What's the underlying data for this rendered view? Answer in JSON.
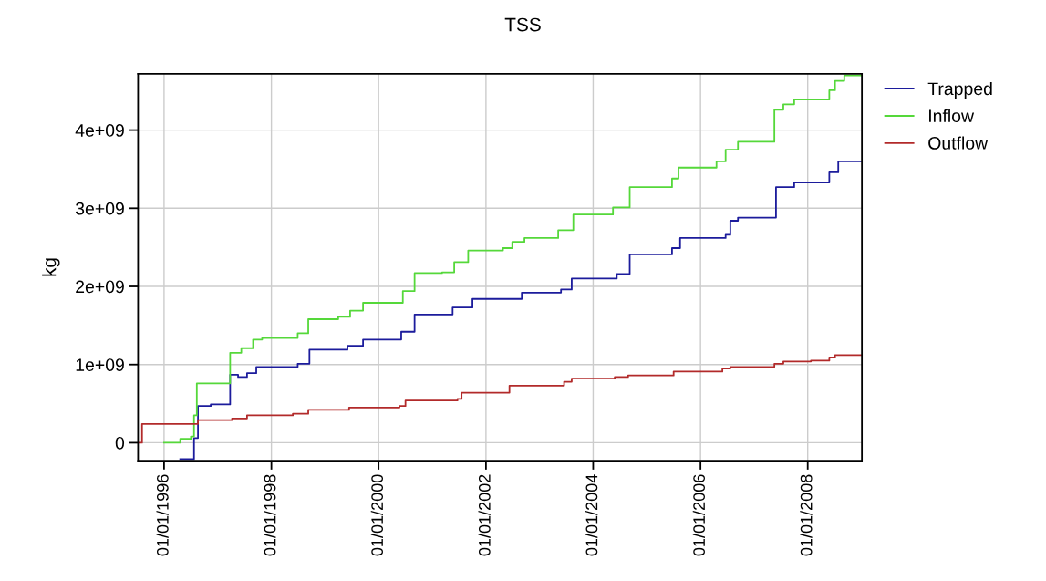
{
  "chart_data": {
    "type": "step",
    "title": "TSS",
    "ylabel": "kg",
    "xlim": [
      "1995-07-08",
      "2009-01-04"
    ],
    "ylim": [
      -230000000,
      4720000000
    ],
    "xticks": [
      {
        "value": "1996-01-01",
        "label": "01/01/1996"
      },
      {
        "value": "1998-01-01",
        "label": "01/01/1998"
      },
      {
        "value": "2000-01-01",
        "label": "01/01/2000"
      },
      {
        "value": "2002-01-01",
        "label": "01/01/2002"
      },
      {
        "value": "2004-01-01",
        "label": "01/01/2004"
      },
      {
        "value": "2006-01-01",
        "label": "01/01/2006"
      },
      {
        "value": "2008-01-01",
        "label": "01/01/2008"
      }
    ],
    "yticks": [
      {
        "value": 0,
        "label": "0"
      },
      {
        "value": 1000000000,
        "label": "1e+09"
      },
      {
        "value": 2000000000,
        "label": "2e+09"
      },
      {
        "value": 3000000000,
        "label": "3e+09"
      },
      {
        "value": 4000000000,
        "label": "4e+09"
      }
    ],
    "grid": true,
    "legend": "top right",
    "series": [
      {
        "name": "Trapped",
        "color": "#1c1c9c",
        "x": [
          "1996-04-20",
          "1996-07-23",
          "1996-08-19",
          "1996-11-14",
          "1997-03-26",
          "1997-05-19",
          "1997-07-19",
          "1997-09-20",
          "1998-06-29",
          "1998-09-17",
          "1999-06-03",
          "1999-09-17",
          "2000-06-03",
          "2000-09-02",
          "2001-05-19",
          "2001-10-01",
          "2002-09-02",
          "2003-05-27",
          "2003-08-08",
          "2004-06-10",
          "2004-09-06",
          "2005-06-21",
          "2005-08-15",
          "2006-06-21",
          "2006-07-23",
          "2006-09-13",
          "2007-05-30",
          "2007-10-01",
          "2008-05-27",
          "2008-07-27",
          "2009-01-04"
        ],
        "values": [
          -210000000,
          60000000,
          470000000,
          490000000,
          870000000,
          840000000,
          890000000,
          970000000,
          1010000000,
          1190000000,
          1240000000,
          1320000000,
          1420000000,
          1640000000,
          1730000000,
          1840000000,
          1920000000,
          1960000000,
          2100000000,
          2160000000,
          2410000000,
          2490000000,
          2620000000,
          2660000000,
          2840000000,
          2880000000,
          3270000000,
          3330000000,
          3460000000,
          3600000000,
          3600000000
        ]
      },
      {
        "name": "Inflow",
        "color": "#55d83a",
        "x": [
          "1996-01-01",
          "1996-04-20",
          "1996-07-02",
          "1996-07-23",
          "1996-08-11",
          "1997-03-26",
          "1997-06-10",
          "1997-08-29",
          "1997-10-30",
          "1998-06-29",
          "1998-09-09",
          "1999-04-01",
          "1999-06-21",
          "1999-09-17",
          "2000-06-14",
          "2000-09-02",
          "2001-03-08",
          "2001-05-30",
          "2001-09-02",
          "2002-04-27",
          "2002-06-29",
          "2002-09-20",
          "2003-05-08",
          "2003-08-19",
          "2004-05-15",
          "2004-09-06",
          "2005-06-21",
          "2005-08-04",
          "2006-04-20",
          "2006-06-21",
          "2006-09-13",
          "2007-05-19",
          "2007-07-19",
          "2007-10-01",
          "2008-05-27",
          "2008-07-05",
          "2008-09-06",
          "2009-01-04"
        ],
        "values": [
          0,
          50000000,
          80000000,
          350000000,
          760000000,
          1150000000,
          1210000000,
          1320000000,
          1340000000,
          1400000000,
          1580000000,
          1610000000,
          1690000000,
          1790000000,
          1940000000,
          2170000000,
          2180000000,
          2310000000,
          2460000000,
          2490000000,
          2570000000,
          2620000000,
          2720000000,
          2920000000,
          3010000000,
          3270000000,
          3380000000,
          3520000000,
          3600000000,
          3750000000,
          3850000000,
          4260000000,
          4330000000,
          4390000000,
          4510000000,
          4630000000,
          4700000000,
          4700000000
        ]
      },
      {
        "name": "Outflow",
        "color": "#b22a2a",
        "x": [
          "1995-07-08",
          "1995-08-04",
          "1996-08-19",
          "1997-04-08",
          "1997-07-19",
          "1998-05-27",
          "1998-09-09",
          "1999-06-14",
          "2000-05-22",
          "2000-07-02",
          "2001-06-21",
          "2001-07-19",
          "2002-06-10",
          "2003-06-17",
          "2003-08-08",
          "2004-05-27",
          "2004-08-26",
          "2005-07-02",
          "2006-05-30",
          "2006-07-23",
          "2007-05-19",
          "2007-07-19",
          "2008-01-23",
          "2008-05-27",
          "2008-07-05",
          "2009-01-04"
        ],
        "values": [
          0,
          240000000,
          290000000,
          310000000,
          350000000,
          370000000,
          420000000,
          450000000,
          470000000,
          540000000,
          560000000,
          640000000,
          730000000,
          780000000,
          820000000,
          840000000,
          860000000,
          910000000,
          950000000,
          970000000,
          1010000000,
          1040000000,
          1050000000,
          1090000000,
          1120000000,
          1120000000
        ]
      }
    ]
  }
}
